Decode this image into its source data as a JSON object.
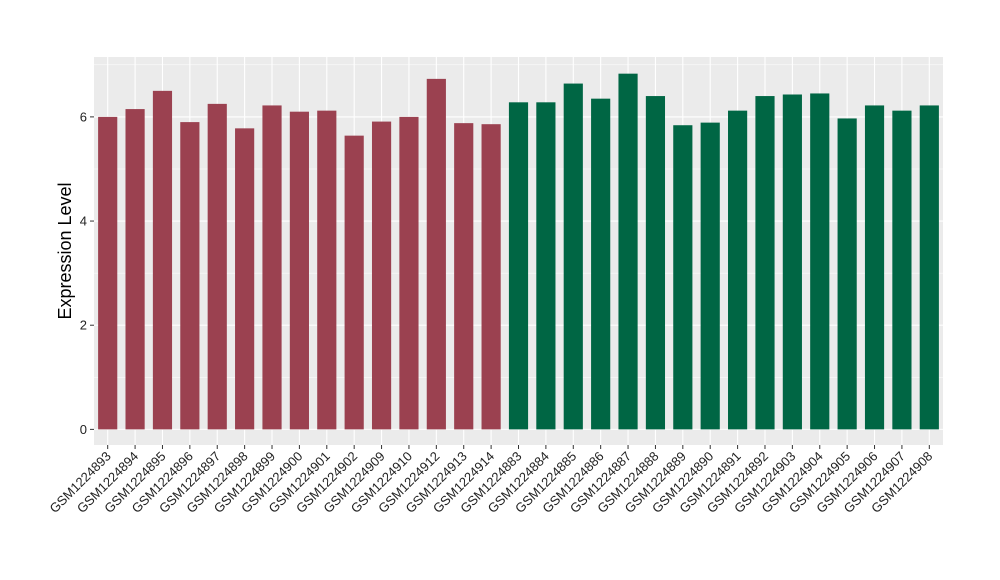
{
  "chart_data": {
    "type": "bar",
    "title": "",
    "xlabel": "",
    "ylabel": "Expression Level",
    "ylim": [
      -0.3,
      7.15
    ],
    "yticks": [
      0,
      2,
      4,
      6
    ],
    "grid": true,
    "categories": [
      "GSM1224893",
      "GSM1224894",
      "GSM1224895",
      "GSM1224896",
      "GSM1224897",
      "GSM1224898",
      "GSM1224899",
      "GSM1224900",
      "GSM1224901",
      "GSM1224902",
      "GSM1224909",
      "GSM1224910",
      "GSM1224912",
      "GSM1224913",
      "GSM1224914",
      "GSM1224883",
      "GSM1224884",
      "GSM1224885",
      "GSM1224886",
      "GSM1224887",
      "GSM1224888",
      "GSM1224889",
      "GSM1224890",
      "GSM1224891",
      "GSM1224892",
      "GSM1224903",
      "GSM1224904",
      "GSM1224905",
      "GSM1224906",
      "GSM1224907",
      "GSM1224908"
    ],
    "values": [
      6.0,
      6.15,
      6.5,
      5.9,
      6.25,
      5.78,
      6.22,
      6.1,
      6.12,
      5.64,
      5.91,
      6.0,
      6.73,
      5.88,
      5.86,
      6.28,
      6.28,
      6.64,
      6.35,
      6.83,
      6.4,
      5.84,
      5.89,
      6.12,
      6.4,
      6.43,
      6.45,
      5.97,
      6.22,
      6.12,
      6.22
    ],
    "group_sizes": [
      15,
      16
    ],
    "colors": [
      "#9b4150",
      "#006644"
    ],
    "panel_background": "#ebebeb",
    "gridline_color": "#ffffff"
  }
}
